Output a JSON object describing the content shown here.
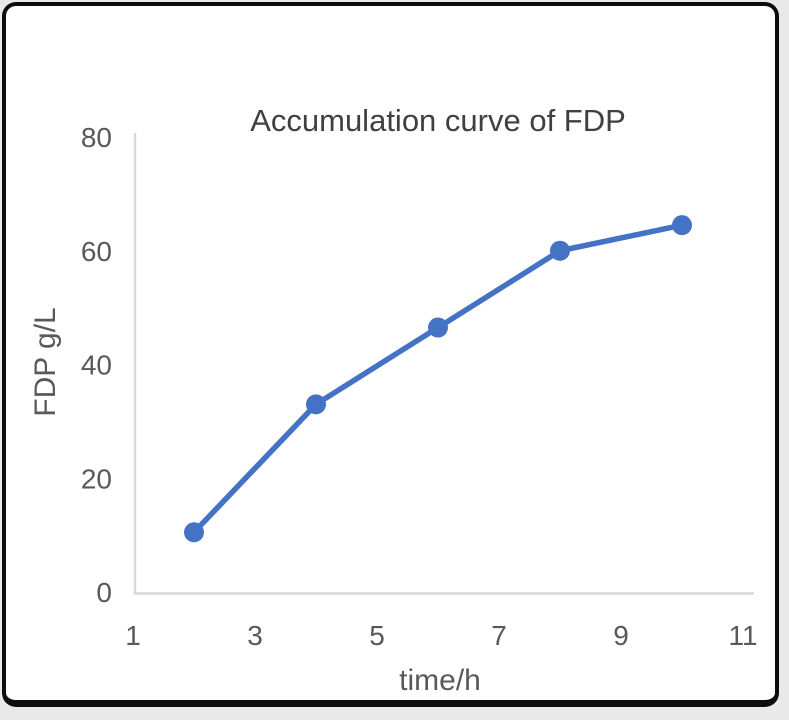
{
  "chart_data": {
    "type": "line",
    "title": "Accumulation curve of FDP",
    "xlabel": "time/h",
    "ylabel": "FDP g/L",
    "x": [
      2,
      4,
      6,
      8,
      10
    ],
    "values": [
      10.5,
      33,
      46.5,
      60,
      64.5
    ],
    "xlim": [
      1,
      11
    ],
    "ylim": [
      0,
      80
    ],
    "xticks": [
      1,
      3,
      5,
      7,
      9,
      11
    ],
    "yticks": [
      0,
      20,
      40,
      60,
      80
    ],
    "grid": false,
    "legend": "none",
    "line_color": "#4472C4",
    "marker": "circle",
    "axis_color": "#d9d9d9",
    "tick_color": "#595959",
    "title_color": "#404040"
  }
}
